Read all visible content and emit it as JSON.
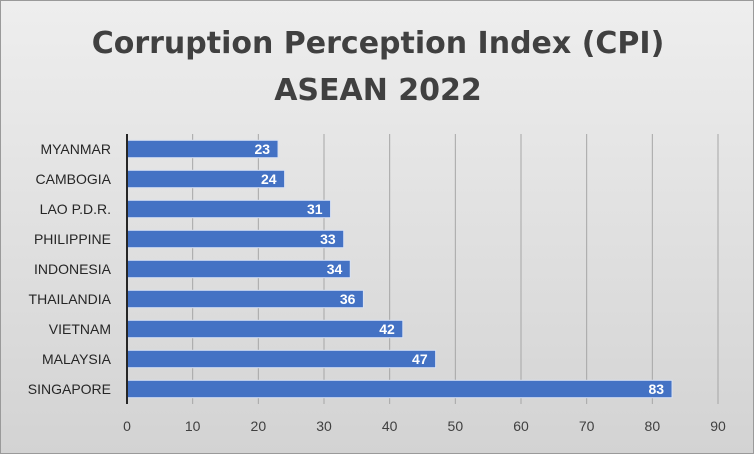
{
  "chart_data": {
    "type": "bar",
    "orientation": "horizontal",
    "title": [
      "Corruption Perception Index (CPI)",
      "ASEAN 2022"
    ],
    "categories": [
      "MYANMAR",
      "CAMBOGIA",
      "LAO P.D.R.",
      "PHILIPPINE",
      "INDONESIA",
      "THAILANDIA",
      "VIETNAM",
      "MALAYSIA",
      "SINGAPORE"
    ],
    "values": [
      23,
      24,
      31,
      33,
      34,
      36,
      42,
      47,
      83
    ],
    "xlim": [
      0,
      90
    ],
    "xticks": [
      0,
      10,
      20,
      30,
      40,
      50,
      60,
      70,
      80,
      90
    ],
    "grid": true,
    "legend": "none",
    "data_labels": true,
    "colors": {
      "bar": "#4472c4",
      "bar_edge": "#d9e2f3",
      "background_top": "#eeeeee",
      "background_bottom": "#d3d3d3",
      "gridline": "#a6a6a6",
      "title": "#404040",
      "data_label": "#ffffff"
    }
  }
}
